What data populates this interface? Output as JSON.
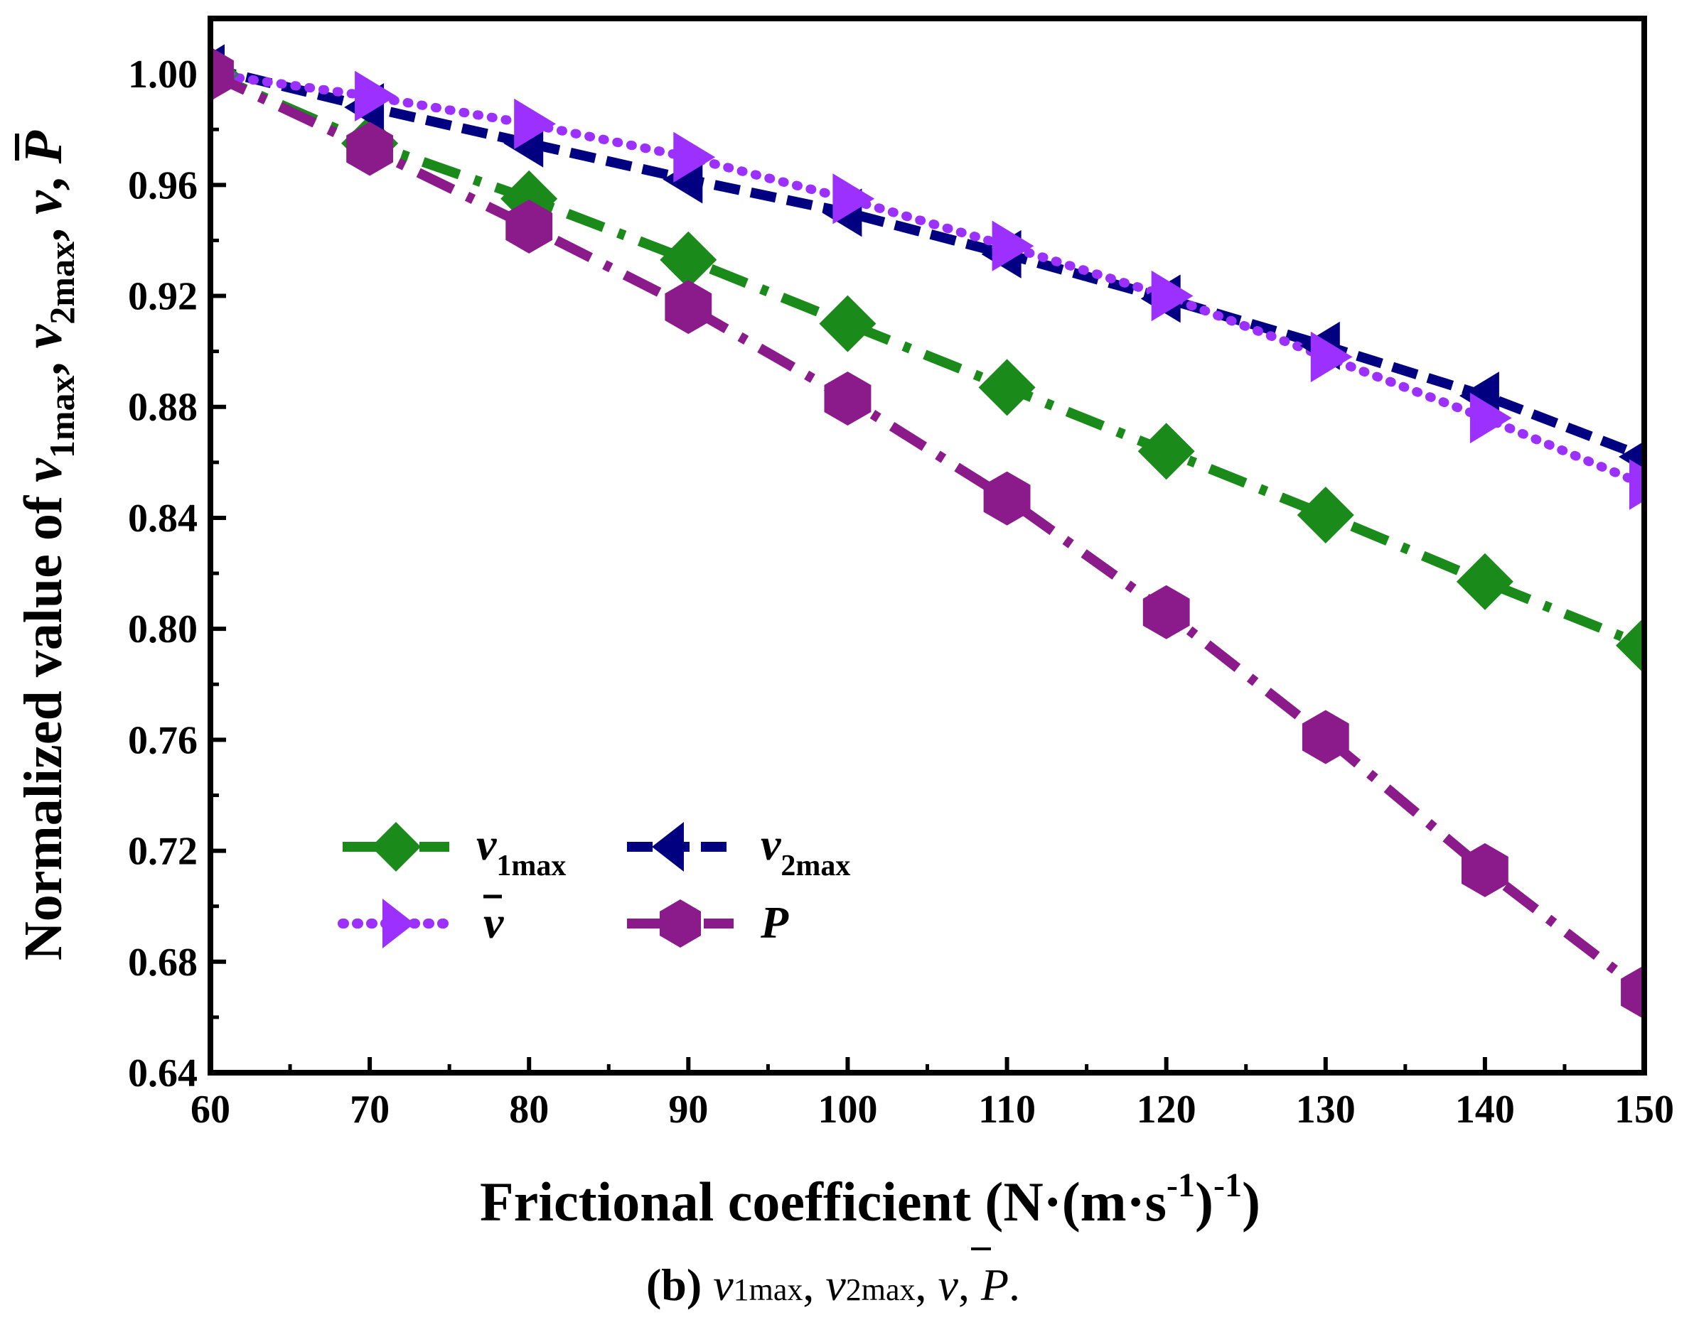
{
  "chart_data": {
    "type": "line",
    "title": "",
    "xlabel": "Frictional coefficient (N·(m·s-1)-1)",
    "xlabel_parts": {
      "main": "Frictional coefficient (N·(m·s",
      "sup1": "-1",
      "mid": ")",
      "sup2": "-1",
      "end": ")"
    },
    "ylabel": "Normalized value of v1max, v2max, v̄, P",
    "ylabel_parts": {
      "prefix": "Normalized value of ",
      "v": "v",
      "sub1": "1max",
      "sub2": "2max",
      "sep": ", ",
      "P": "P"
    },
    "xlim": [
      60,
      150
    ],
    "ylim": [
      0.64,
      1.02
    ],
    "xticks": [
      60,
      70,
      80,
      90,
      100,
      110,
      120,
      130,
      140,
      150
    ],
    "yticks": [
      "0.64",
      "0.68",
      "0.72",
      "0.76",
      "0.80",
      "0.84",
      "0.88",
      "0.92",
      "0.96",
      "1.00"
    ],
    "x": [
      60,
      70,
      80,
      90,
      100,
      110,
      120,
      130,
      140,
      150
    ],
    "series": [
      {
        "name": "v1max",
        "label_main": "v",
        "label_sub": "1max",
        "color": "#1a8a1a",
        "dash": "54 22 10 22",
        "marker": "diamond",
        "markersize": 40,
        "values": [
          1.0,
          0.975,
          0.955,
          0.933,
          0.91,
          0.887,
          0.864,
          0.841,
          0.817,
          0.794
        ]
      },
      {
        "name": "v2max",
        "label_main": "v",
        "label_sub": "2max",
        "color": "#000080",
        "dash": "36 16",
        "marker": "triangle-left",
        "markersize": 40,
        "values": [
          1.002,
          0.988,
          0.975,
          0.962,
          0.95,
          0.935,
          0.919,
          0.902,
          0.884,
          0.862
        ]
      },
      {
        "name": "v̄",
        "label_main": "v",
        "label_sub": "",
        "overline": true,
        "color": "#9b30ff",
        "dash": "2 18",
        "marker": "triangle-right",
        "markersize": 42,
        "values": [
          1.0,
          0.992,
          0.982,
          0.97,
          0.955,
          0.938,
          0.92,
          0.898,
          0.876,
          0.852
        ]
      },
      {
        "name": "P",
        "label_main": "P",
        "label_sub": "",
        "color": "#8b1a8b",
        "dash": "54 22 10 22",
        "marker": "hexagon",
        "markersize": 38,
        "values": [
          1.0,
          0.973,
          0.945,
          0.916,
          0.883,
          0.847,
          0.806,
          0.761,
          0.713,
          0.669
        ]
      }
    ],
    "legend_position": "bottom-left"
  },
  "caption": {
    "label": "(b)",
    "v": "v",
    "sub1": "1max",
    "sub2": "2max",
    "sep": ", ",
    "P": "P",
    "end": "."
  }
}
